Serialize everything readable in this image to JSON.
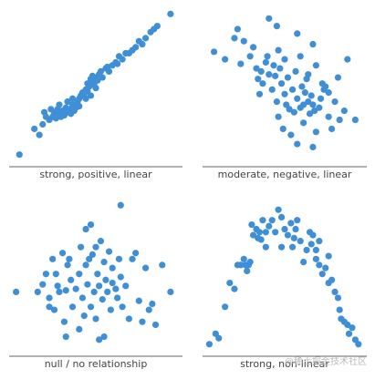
{
  "chart_data": [
    {
      "type": "scatter",
      "title": "strong, positive, linear",
      "color": "#3f8fd6",
      "xlim": [
        0,
        100
      ],
      "ylim": [
        0,
        100
      ],
      "x": [
        4,
        13,
        16,
        18,
        20,
        22,
        24,
        25,
        26,
        27,
        28,
        29,
        30,
        31,
        32,
        33,
        34,
        35,
        36,
        37,
        38,
        39,
        40,
        40,
        41,
        42,
        43,
        44,
        45,
        45,
        46,
        47,
        48,
        48,
        49,
        50,
        51,
        52,
        50,
        47,
        44,
        53,
        54,
        56,
        58,
        60,
        62,
        63,
        64,
        66,
        68,
        70,
        72,
        74,
        76,
        78,
        80,
        83,
        85,
        87,
        95,
        57,
        36,
        33,
        28,
        23,
        19
      ],
      "y": [
        5,
        22,
        18,
        25,
        30,
        28,
        30,
        33,
        29,
        35,
        32,
        30,
        34,
        31,
        36,
        33,
        35,
        32,
        38,
        34,
        36,
        40,
        42,
        37,
        44,
        46,
        45,
        48,
        47,
        52,
        50,
        55,
        53,
        57,
        51,
        56,
        54,
        58,
        49,
        44,
        42,
        60,
        56,
        62,
        60,
        64,
        66,
        65,
        70,
        68,
        72,
        72,
        74,
        76,
        80,
        78,
        82,
        86,
        88,
        90,
        98,
        63,
        42,
        40,
        38,
        35,
        33
      ]
    },
    {
      "type": "scatter",
      "title": "moderate, negative, linear",
      "color": "#3f8fd6",
      "xlim": [
        0,
        100
      ],
      "ylim": [
        0,
        100
      ],
      "x": [
        5,
        12,
        18,
        20,
        24,
        28,
        30,
        32,
        33,
        34,
        35,
        36,
        38,
        39,
        40,
        40,
        42,
        43,
        44,
        45,
        46,
        46,
        47,
        48,
        49,
        50,
        50,
        51,
        52,
        53,
        54,
        55,
        56,
        57,
        58,
        58,
        60,
        60,
        61,
        62,
        62,
        63,
        64,
        65,
        65,
        66,
        67,
        68,
        68,
        69,
        70,
        70,
        72,
        73,
        74,
        75,
        76,
        78,
        78,
        80,
        82,
        84,
        85,
        88,
        90,
        95,
        68,
        58,
        45,
        22
      ],
      "y": [
        73,
        68,
        82,
        88,
        80,
        70,
        76,
        62,
        55,
        45,
        60,
        52,
        66,
        70,
        58,
        95,
        48,
        64,
        57,
        40,
        30,
        74,
        62,
        52,
        22,
        68,
        45,
        38,
        56,
        35,
        18,
        48,
        33,
        60,
        42,
        85,
        70,
        36,
        50,
        38,
        26,
        46,
        55,
        40,
        58,
        32,
        44,
        78,
        38,
        34,
        64,
        20,
        36,
        42,
        52,
        48,
        50,
        30,
        46,
        22,
        40,
        56,
        28,
        34,
        68,
        28,
        10,
        12,
        90,
        65
      ]
    },
    {
      "type": "scatter",
      "title": "null / no relationship",
      "color": "#3f8fd6",
      "xlim": [
        0,
        100
      ],
      "ylim": [
        0,
        100
      ],
      "x": [
        2,
        15,
        18,
        20,
        22,
        24,
        25,
        26,
        27,
        28,
        30,
        31,
        32,
        33,
        34,
        35,
        36,
        38,
        40,
        40,
        41,
        42,
        43,
        44,
        44,
        45,
        46,
        47,
        47,
        48,
        49,
        50,
        50,
        51,
        52,
        53,
        54,
        55,
        55,
        56,
        57,
        58,
        59,
        60,
        60,
        62,
        63,
        64,
        65,
        65,
        66,
        68,
        70,
        72,
        74,
        76,
        78,
        80,
        82,
        84,
        86,
        90,
        95,
        32,
        22,
        52
      ],
      "y": [
        40,
        40,
        45,
        52,
        36,
        62,
        28,
        52,
        44,
        40,
        66,
        20,
        41,
        58,
        62,
        48,
        30,
        42,
        52,
        15,
        70,
        36,
        24,
        58,
        82,
        45,
        62,
        30,
        85,
        65,
        40,
        70,
        22,
        52,
        44,
        74,
        35,
        60,
        10,
        48,
        40,
        67,
        28,
        56,
        46,
        42,
        36,
        62,
        50,
        98,
        30,
        44,
        22,
        62,
        66,
        34,
        20,
        56,
        28,
        32,
        18,
        58,
        40,
        10,
        30,
        8
      ]
    },
    {
      "type": "scatter",
      "title": "strong, non-linear",
      "color": "#3f8fd6",
      "xlim": [
        0,
        100
      ],
      "ylim": [
        0,
        100
      ],
      "x": [
        2,
        6,
        8,
        12,
        15,
        18,
        20,
        22,
        24,
        25,
        27,
        28,
        29,
        30,
        32,
        34,
        35,
        36,
        38,
        40,
        42,
        44,
        46,
        48,
        50,
        52,
        54,
        55,
        56,
        57,
        58,
        60,
        62,
        64,
        66,
        67,
        68,
        70,
        72,
        72,
        74,
        76,
        78,
        80,
        82,
        84,
        86,
        88,
        90,
        91,
        93,
        95,
        97,
        85,
        70,
        26,
        33,
        78,
        48,
        38
      ],
      "y": [
        5,
        12,
        9,
        30,
        46,
        42,
        58,
        58,
        62,
        58,
        58,
        60,
        85,
        78,
        82,
        80,
        75,
        88,
        70,
        84,
        88,
        80,
        95,
        90,
        82,
        78,
        86,
        70,
        76,
        82,
        88,
        74,
        60,
        68,
        80,
        72,
        78,
        62,
        58,
        74,
        52,
        56,
        46,
        48,
        40,
        36,
        22,
        20,
        18,
        12,
        16,
        8,
        5,
        28,
        68,
        54,
        76,
        64,
        70,
        80
      ]
    }
  ],
  "watermark": "@稀土掘金技术社区"
}
